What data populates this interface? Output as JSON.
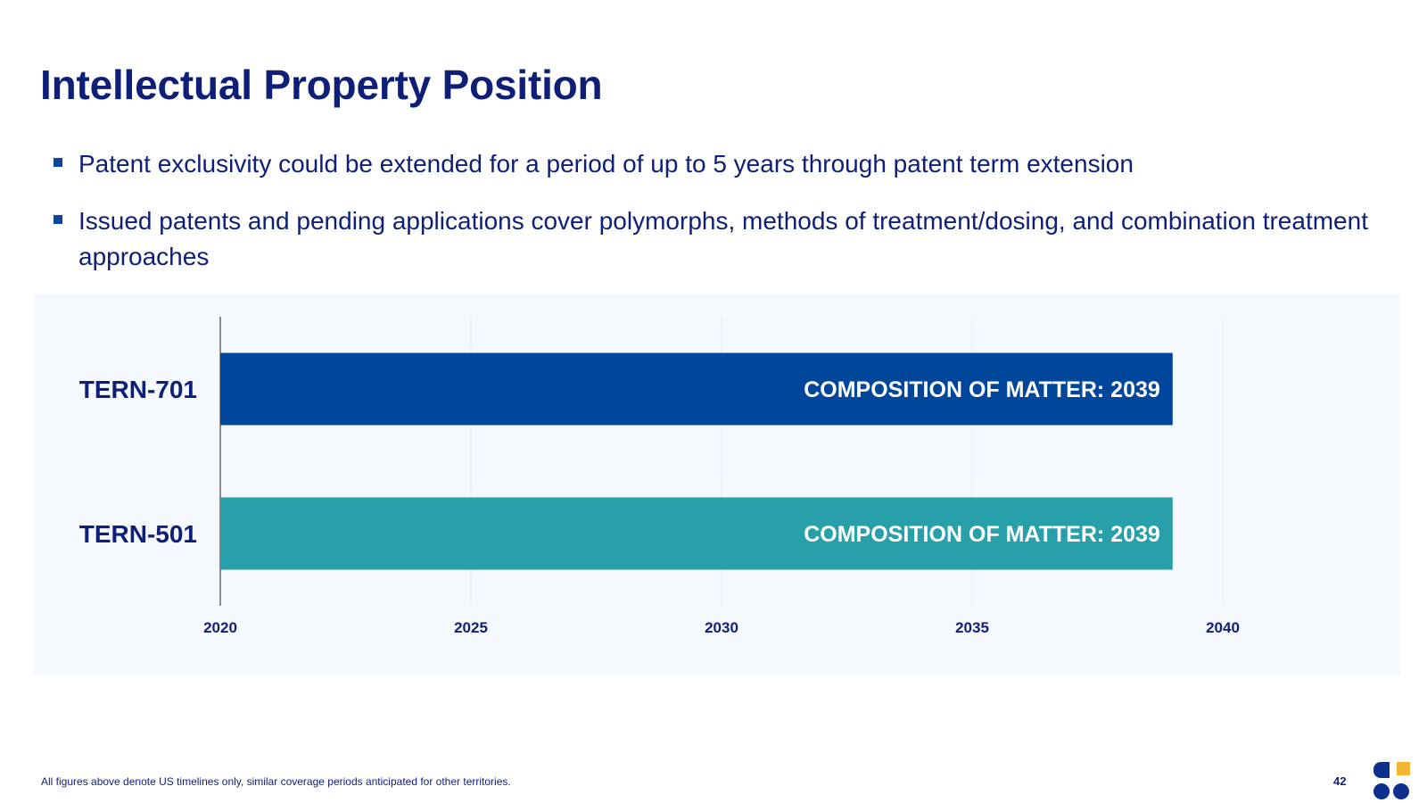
{
  "slide": {
    "title": "Intellectual Property Position",
    "bullets": [
      "Patent exclusivity could be extended for a period of up to 5 years through patent term extension",
      "Issued patents and pending applications cover polymorphs, methods of treatment/dosing, and combination treatment approaches"
    ],
    "footnote": "All figures above denote US timelines only, similar coverage periods anticipated for other territories.",
    "page_number": "42",
    "logo_icon": "company-logo-icon"
  },
  "colors": {
    "title": "#0f1f78",
    "bar_tern701": "#00479b",
    "bar_tern501": "#27a0a9",
    "panel_bg": "#f5f8fd",
    "logo_blue": "#0f2f8c",
    "logo_gold": "#f2b632"
  },
  "chart_data": {
    "type": "bar",
    "orientation": "horizontal",
    "categories": [
      "TERN-701",
      "TERN-501"
    ],
    "series": [
      {
        "values": [
          2039,
          2039
        ],
        "labels": [
          "COMPOSITION OF MATTER: 2039",
          "COMPOSITION OF MATTER: 2039"
        ]
      }
    ],
    "bar_start": 2020,
    "xlim": [
      2020,
      2040
    ],
    "xticks": [
      "2020",
      "2025",
      "2030",
      "2035",
      "2040"
    ],
    "grid": true,
    "legend": "none"
  }
}
